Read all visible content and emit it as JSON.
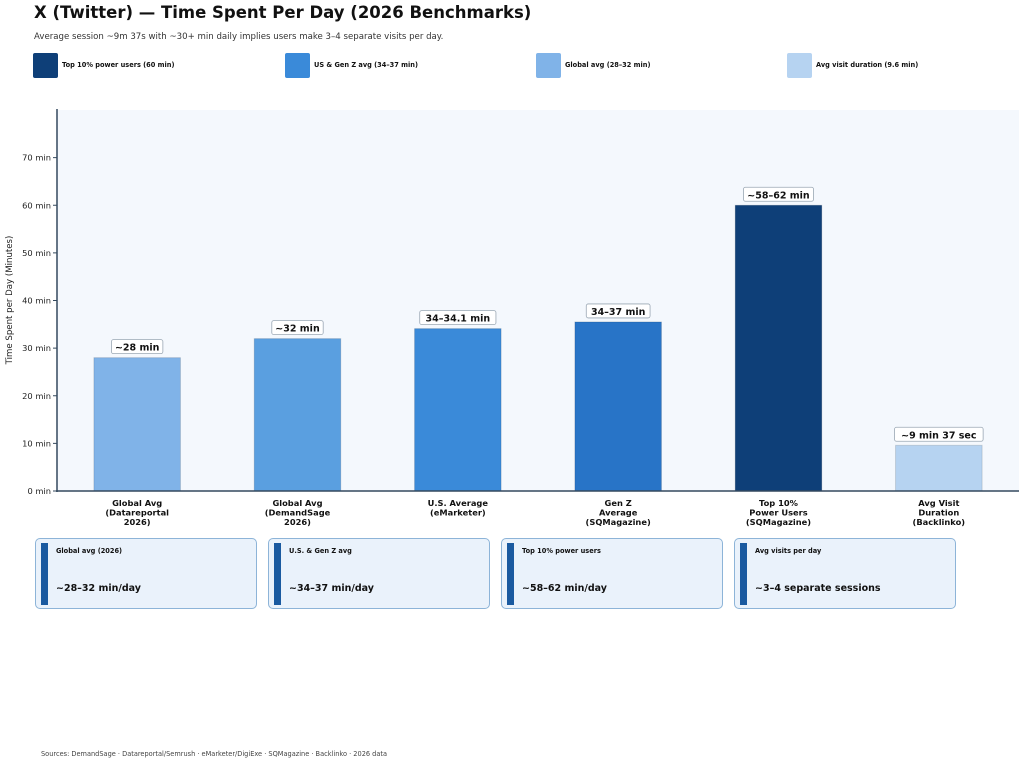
{
  "header": {
    "title": "X (Twitter) — Time Spent Per Day (2026 Benchmarks)",
    "subtitle": "Average session ~9m 37s with ~30+ min daily implies users make 3–4 separate visits per day."
  },
  "legend": [
    {
      "label": "Top 10% power users (60 min)",
      "color": "#0e3f78"
    },
    {
      "label": "US & Gen Z avg (34–37 min)",
      "color": "#3a8ad9"
    },
    {
      "label": "Global avg (28–32 min)",
      "color": "#80b3e8"
    },
    {
      "label": "Avg visit duration (9.6 min)",
      "color": "#b6d3f1"
    }
  ],
  "chart_data": {
    "type": "bar",
    "title": "X (Twitter) — Time Spent Per Day (2026 Benchmarks)",
    "xlabel": "",
    "ylabel": "Time Spent per Day (Minutes)",
    "ylim": [
      0,
      80
    ],
    "yticks": [
      0,
      10,
      20,
      30,
      40,
      50,
      60,
      70
    ],
    "ytick_labels": [
      "0 min",
      "10 min",
      "20 min",
      "30 min",
      "40 min",
      "50 min",
      "60 min",
      "70 min"
    ],
    "grid": false,
    "legend_position": "top",
    "categories": [
      [
        "Global Avg",
        "(Datareportal",
        "2026)"
      ],
      [
        "Global Avg",
        "(DemandSage",
        "2026)"
      ],
      [
        "U.S. Average",
        "(eMarketer)"
      ],
      [
        "Gen Z",
        "Average",
        "(SQMagazine)"
      ],
      [
        "Top 10%",
        "Power Users",
        "(SQMagazine)"
      ],
      [
        "Avg Visit",
        "Duration",
        "(Backlinko)"
      ]
    ],
    "values": [
      28,
      32,
      34.1,
      35.5,
      60,
      9.6
    ],
    "colors": [
      "#80b3e8",
      "#5a9fe0",
      "#3a8ad9",
      "#2874c7",
      "#0e3f78",
      "#b6d3f1"
    ],
    "data_labels": [
      "~28 min",
      "~32 min",
      "34–34.1 min",
      "34–37 min",
      "~58–62 min",
      "~9 min 37 sec"
    ]
  },
  "cards": [
    {
      "label": "Global avg (2026)",
      "value": "~28–32 min/day"
    },
    {
      "label": "U.S. & Gen Z avg",
      "value": "~34–37 min/day"
    },
    {
      "label": "Top 10% power users",
      "value": "~58–62 min/day"
    },
    {
      "label": "Avg visits per day",
      "value": "~3–4 separate sessions"
    }
  ],
  "footer": {
    "sources": "Sources: DemandSage · Datareportal/Semrush · eMarketer/DigiExe · SQMagazine · Backlinko · 2026 data"
  }
}
